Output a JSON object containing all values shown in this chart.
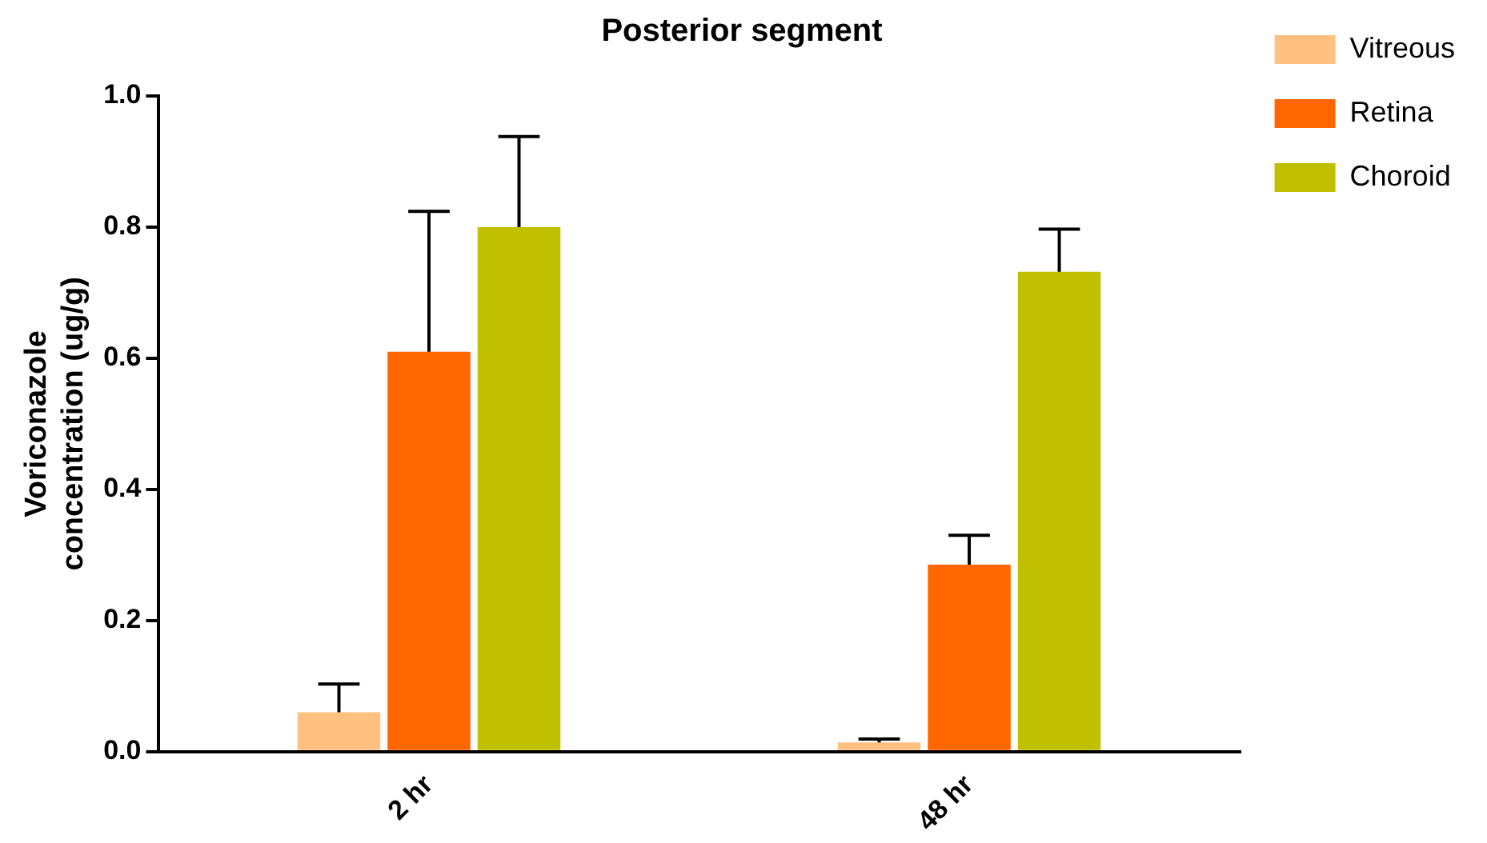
{
  "chart_data": {
    "type": "bar",
    "title": "Posterior segment",
    "ylabel": "Voriconazole concentration (ug/g)",
    "categories": [
      "2 hr",
      "48 hr"
    ],
    "series": [
      {
        "name": "Vitreous",
        "color": "#ffc080",
        "values": [
          0.06,
          0.014
        ],
        "errors": [
          [
            0.06,
            0.103
          ],
          [
            0.014,
            0.019
          ]
        ]
      },
      {
        "name": "Retina",
        "color": "#ff6600",
        "values": [
          0.61,
          0.285
        ],
        "errors": [
          [
            0.61,
            0.824
          ],
          [
            0.285,
            0.33
          ]
        ]
      },
      {
        "name": "Choroid",
        "color": "#c0c000",
        "values": [
          0.8,
          0.732
        ],
        "errors": [
          [
            0.8,
            0.938
          ],
          [
            0.732,
            0.797
          ]
        ]
      }
    ],
    "ylim": [
      0,
      1
    ],
    "yticks": [
      {
        "value": 0,
        "label": "0.0"
      },
      {
        "value": 0.2,
        "label": "0.2"
      },
      {
        "value": 0.4,
        "label": "0.4"
      },
      {
        "value": 0.6,
        "label": "0.6"
      },
      {
        "value": 0.8,
        "label": "0.8"
      },
      {
        "value": 1,
        "label": "1.0"
      }
    ],
    "grid": false,
    "legend": "right"
  }
}
